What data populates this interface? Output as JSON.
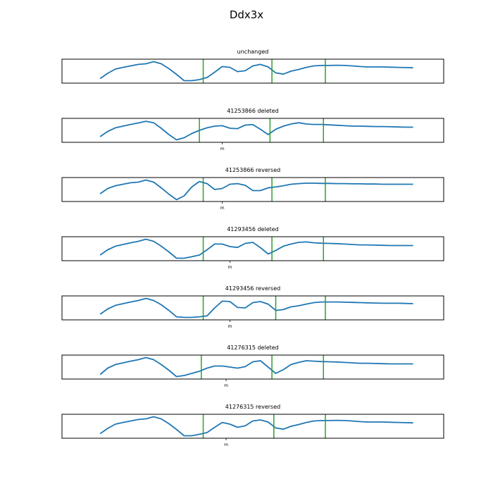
{
  "figure": {
    "title": "Ddx3x"
  },
  "colors": {
    "trace": "#1f77b4",
    "marker": "#2ca02c",
    "frame": "#000000",
    "background": "#ffffff"
  },
  "chart_data": [
    {
      "type": "line",
      "title": "unchanged",
      "xlim": [
        0,
        100
      ],
      "ylim": [
        0,
        1
      ],
      "x": [
        10,
        12,
        14,
        16,
        18,
        20,
        22,
        24,
        26,
        28,
        30,
        32,
        34,
        36,
        38,
        40,
        42,
        44,
        46,
        48,
        50,
        52,
        54,
        56,
        58,
        60,
        62,
        64,
        66,
        68,
        70,
        72,
        74,
        76,
        78,
        80,
        82,
        84,
        86,
        88,
        90,
        92
      ],
      "values": [
        0.15,
        0.4,
        0.6,
        0.68,
        0.75,
        0.82,
        0.85,
        0.95,
        0.85,
        0.62,
        0.35,
        0.05,
        0.05,
        0.1,
        0.2,
        0.45,
        0.72,
        0.68,
        0.48,
        0.52,
        0.75,
        0.82,
        0.7,
        0.42,
        0.36,
        0.5,
        0.58,
        0.68,
        0.75,
        0.77,
        0.77,
        0.78,
        0.77,
        0.75,
        0.72,
        0.7,
        0.7,
        0.7,
        0.69,
        0.68,
        0.67,
        0.66
      ],
      "markers": [
        37,
        55,
        69
      ],
      "xtick": null
    },
    {
      "type": "line",
      "title": "41253866 deleted",
      "xlim": [
        0,
        100
      ],
      "ylim": [
        0,
        1
      ],
      "x": [
        10,
        12,
        14,
        16,
        18,
        20,
        22,
        24,
        26,
        28,
        30,
        32,
        34,
        36,
        38,
        40,
        42,
        44,
        46,
        48,
        50,
        52,
        54,
        56,
        58,
        60,
        62,
        64,
        66,
        68,
        70,
        72,
        74,
        76,
        78,
        80,
        82,
        84,
        86,
        88,
        90,
        92
      ],
      "values": [
        0.2,
        0.45,
        0.62,
        0.7,
        0.78,
        0.85,
        0.93,
        0.86,
        0.6,
        0.3,
        0.05,
        0.15,
        0.35,
        0.5,
        0.62,
        0.7,
        0.72,
        0.6,
        0.58,
        0.75,
        0.77,
        0.55,
        0.3,
        0.55,
        0.7,
        0.8,
        0.86,
        0.8,
        0.78,
        0.78,
        0.76,
        0.74,
        0.72,
        0.7,
        0.7,
        0.69,
        0.68,
        0.68,
        0.67,
        0.66,
        0.65,
        0.65
      ],
      "markers": [
        36,
        54.5,
        68.5
      ],
      "xtick": {
        "value": 42,
        "label": "m"
      }
    },
    {
      "type": "line",
      "title": "41253866 reversed",
      "xlim": [
        0,
        100
      ],
      "ylim": [
        0,
        1
      ],
      "x": [
        10,
        12,
        14,
        16,
        18,
        20,
        22,
        24,
        26,
        28,
        30,
        32,
        34,
        36,
        38,
        40,
        42,
        44,
        46,
        48,
        50,
        52,
        54,
        56,
        58,
        60,
        62,
        64,
        66,
        68,
        70,
        72,
        74,
        76,
        78,
        80,
        82,
        84,
        86,
        88,
        90,
        92
      ],
      "values": [
        0.3,
        0.55,
        0.68,
        0.75,
        0.82,
        0.85,
        0.95,
        0.85,
        0.58,
        0.28,
        0.02,
        0.2,
        0.62,
        0.88,
        0.78,
        0.5,
        0.55,
        0.75,
        0.78,
        0.7,
        0.45,
        0.45,
        0.58,
        0.62,
        0.68,
        0.75,
        0.78,
        0.8,
        0.8,
        0.79,
        0.79,
        0.78,
        0.78,
        0.77,
        0.77,
        0.76,
        0.76,
        0.75,
        0.75,
        0.75,
        0.75,
        0.75
      ],
      "markers": [
        37,
        55,
        69
      ],
      "xtick": {
        "value": 42,
        "label": "m"
      }
    },
    {
      "type": "line",
      "title": "41293456 deleted",
      "xlim": [
        0,
        100
      ],
      "ylim": [
        0,
        1
      ],
      "x": [
        10,
        12,
        14,
        16,
        18,
        20,
        22,
        24,
        26,
        28,
        30,
        32,
        34,
        36,
        38,
        40,
        42,
        44,
        46,
        48,
        50,
        52,
        54,
        56,
        58,
        60,
        62,
        64,
        66,
        68,
        70,
        72,
        74,
        76,
        78,
        80,
        82,
        84,
        86,
        88,
        90,
        92
      ],
      "values": [
        0.2,
        0.45,
        0.62,
        0.7,
        0.78,
        0.85,
        0.95,
        0.85,
        0.62,
        0.35,
        0.05,
        0.05,
        0.12,
        0.2,
        0.45,
        0.72,
        0.72,
        0.6,
        0.56,
        0.75,
        0.8,
        0.55,
        0.25,
        0.42,
        0.62,
        0.72,
        0.8,
        0.82,
        0.78,
        0.76,
        0.75,
        0.74,
        0.72,
        0.7,
        0.68,
        0.68,
        0.67,
        0.66,
        0.65,
        0.65,
        0.65,
        0.65
      ],
      "markers": [
        37,
        55,
        68.5
      ],
      "xtick": {
        "value": 44,
        "label": "m"
      }
    },
    {
      "type": "line",
      "title": "41293456 reversed",
      "xlim": [
        0,
        100
      ],
      "ylim": [
        0,
        1
      ],
      "x": [
        10,
        12,
        14,
        16,
        18,
        20,
        22,
        24,
        26,
        28,
        30,
        32,
        34,
        36,
        38,
        40,
        42,
        44,
        46,
        48,
        50,
        52,
        54,
        56,
        58,
        60,
        62,
        64,
        66,
        68,
        70,
        72,
        74,
        76,
        78,
        80,
        82,
        84,
        86,
        88,
        90,
        92
      ],
      "values": [
        0.2,
        0.45,
        0.62,
        0.7,
        0.78,
        0.85,
        0.95,
        0.85,
        0.65,
        0.38,
        0.08,
        0.05,
        0.05,
        0.08,
        0.12,
        0.5,
        0.82,
        0.8,
        0.52,
        0.5,
        0.75,
        0.8,
        0.68,
        0.38,
        0.42,
        0.55,
        0.6,
        0.68,
        0.75,
        0.78,
        0.78,
        0.78,
        0.77,
        0.76,
        0.75,
        0.74,
        0.73,
        0.72,
        0.72,
        0.72,
        0.71,
        0.7
      ],
      "markers": [
        37,
        56,
        69
      ],
      "xtick": {
        "value": 44,
        "label": "m"
      }
    },
    {
      "type": "line",
      "title": "41276315 deleted",
      "xlim": [
        0,
        100
      ],
      "ylim": [
        0,
        1
      ],
      "x": [
        10,
        12,
        14,
        16,
        18,
        20,
        22,
        24,
        26,
        28,
        30,
        32,
        34,
        36,
        38,
        40,
        42,
        44,
        46,
        48,
        50,
        52,
        54,
        56,
        58,
        60,
        62,
        64,
        66,
        68,
        70,
        72,
        74,
        76,
        78,
        80,
        82,
        84,
        86,
        88,
        90,
        92
      ],
      "values": [
        0.15,
        0.45,
        0.62,
        0.7,
        0.78,
        0.85,
        0.95,
        0.85,
        0.62,
        0.35,
        0.05,
        0.1,
        0.2,
        0.3,
        0.45,
        0.55,
        0.55,
        0.5,
        0.45,
        0.52,
        0.75,
        0.8,
        0.5,
        0.2,
        0.38,
        0.62,
        0.72,
        0.8,
        0.78,
        0.76,
        0.75,
        0.74,
        0.72,
        0.7,
        0.68,
        0.68,
        0.67,
        0.66,
        0.65,
        0.65,
        0.65,
        0.65
      ],
      "markers": [
        36.5,
        55,
        68.5
      ],
      "xtick": {
        "value": 43,
        "label": "m"
      }
    },
    {
      "type": "line",
      "title": "41276315 reversed",
      "xlim": [
        0,
        100
      ],
      "ylim": [
        0,
        1
      ],
      "x": [
        10,
        12,
        14,
        16,
        18,
        20,
        22,
        24,
        26,
        28,
        30,
        32,
        34,
        36,
        38,
        40,
        42,
        44,
        46,
        48,
        50,
        52,
        54,
        56,
        58,
        60,
        62,
        64,
        66,
        68,
        70,
        72,
        74,
        76,
        78,
        80,
        82,
        84,
        86,
        88,
        90,
        92
      ],
      "values": [
        0.15,
        0.4,
        0.6,
        0.68,
        0.75,
        0.82,
        0.85,
        0.95,
        0.85,
        0.62,
        0.35,
        0.05,
        0.05,
        0.12,
        0.2,
        0.45,
        0.68,
        0.6,
        0.45,
        0.52,
        0.75,
        0.8,
        0.7,
        0.42,
        0.36,
        0.5,
        0.58,
        0.68,
        0.75,
        0.77,
        0.77,
        0.78,
        0.77,
        0.75,
        0.72,
        0.7,
        0.7,
        0.7,
        0.69,
        0.68,
        0.67,
        0.66
      ],
      "markers": [
        37,
        55.5,
        69
      ],
      "xtick": {
        "value": 43,
        "label": "m"
      }
    }
  ]
}
